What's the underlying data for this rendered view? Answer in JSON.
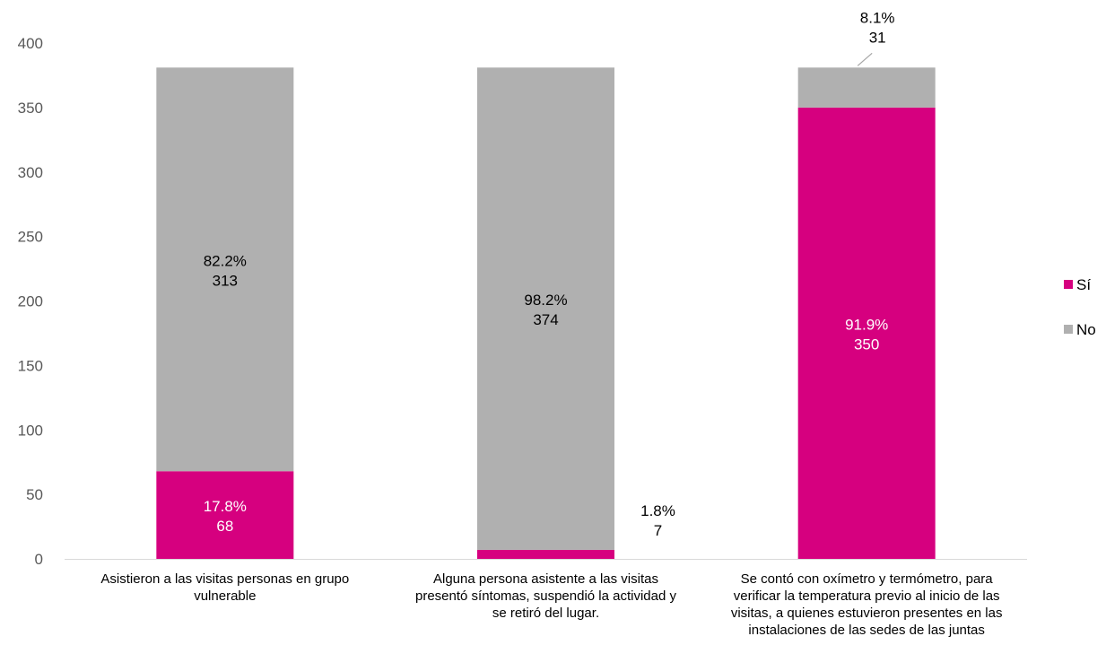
{
  "chart_data": {
    "type": "bar",
    "stacked": true,
    "categories": [
      [
        "Asistieron a las visitas personas en grupo",
        "vulnerable"
      ],
      [
        "Alguna persona asistente a las visitas",
        "presentó síntomas, suspendió la actividad y",
        "se retiró del lugar."
      ],
      [
        "Se contó con oxímetro y termómetro, para",
        "verificar la temperatura previo al inicio de las",
        "visitas, a quienes estuvieron presentes en las",
        "instalaciones de las sedes de las juntas"
      ]
    ],
    "series": [
      {
        "name": "Sí",
        "color": "#D6007F",
        "values": [
          68,
          7,
          350
        ],
        "labels": [
          [
            "17.8%",
            "68"
          ],
          [
            "1.8%",
            "7"
          ],
          [
            "91.9%",
            "350"
          ]
        ]
      },
      {
        "name": "No",
        "color": "#B0B0B0",
        "values": [
          313,
          374,
          31
        ],
        "labels": [
          [
            "82.2%",
            "313"
          ],
          [
            "98.2%",
            "374"
          ],
          [
            "8.1%",
            "31"
          ]
        ]
      }
    ],
    "ylim": [
      0,
      400
    ],
    "yticks": [
      "0",
      "50",
      "100",
      "150",
      "200",
      "250",
      "300",
      "350",
      "400"
    ],
    "grid": false,
    "legend_position": "right"
  }
}
